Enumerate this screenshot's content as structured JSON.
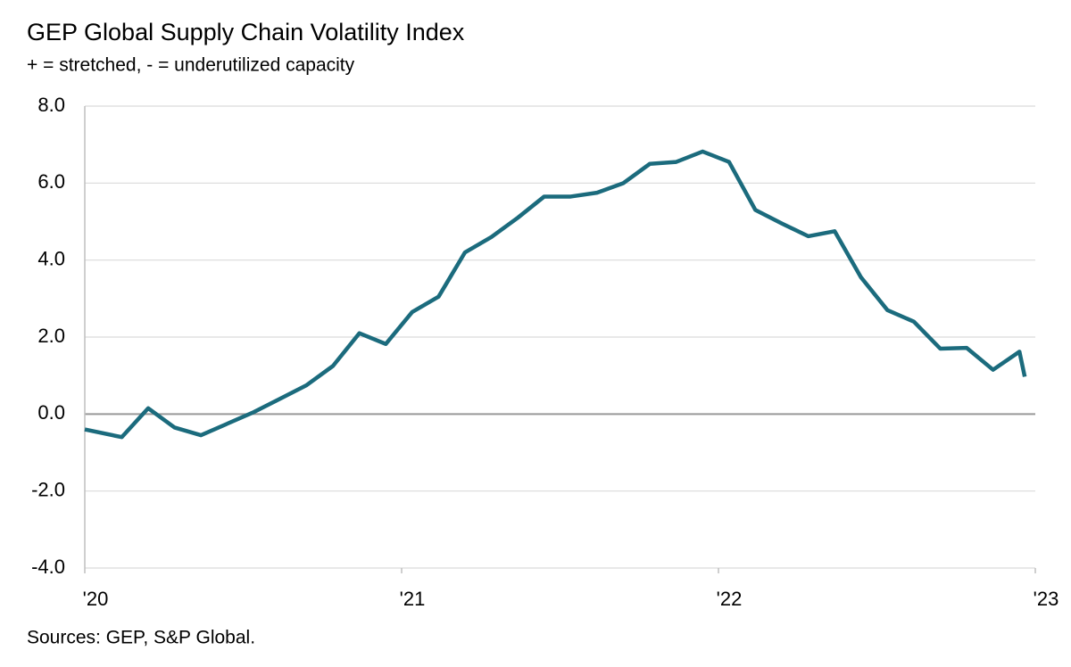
{
  "chart_data": {
    "type": "line",
    "title": "GEP Global Supply Chain Volatility Index",
    "subtitle": "+ = stretched, - = underutilized capacity",
    "source": "Sources: GEP, S&P Global.",
    "x": [
      0,
      1.4,
      2.4,
      3.4,
      4.4,
      5.4,
      6.4,
      7.4,
      8.4,
      9.4,
      10.4,
      11.4,
      12.4,
      13.4,
      14.4,
      15.4,
      16.4,
      17.4,
      18.4,
      19.4,
      20.4,
      21.4,
      22.4,
      23.4,
      24.4,
      25.4,
      26.4,
      27.4,
      28.4,
      29.4,
      30.4,
      31.4,
      32.4,
      33.4,
      34.4,
      35.4,
      35.6
    ],
    "series": [
      {
        "name": "GEP Global Supply Chain Volatility Index",
        "color": "#1b6b7d",
        "values": [
          -0.4,
          -0.6,
          0.15,
          -0.35,
          -0.55,
          -0.25,
          0.05,
          0.4,
          0.75,
          1.25,
          2.1,
          1.82,
          2.65,
          3.05,
          4.2,
          4.6,
          5.1,
          5.65,
          5.65,
          5.75,
          6.0,
          6.5,
          6.55,
          6.82,
          6.55,
          5.3,
          4.95,
          4.62,
          4.75,
          3.55,
          2.7,
          2.4,
          1.7,
          1.72,
          1.15,
          1.62,
          0.97
        ]
      }
    ],
    "xlim": [
      0,
      36
    ],
    "xticks": [
      {
        "value": 0,
        "label": "'20"
      },
      {
        "value": 12,
        "label": "'21"
      },
      {
        "value": 24,
        "label": "'22"
      },
      {
        "value": 36,
        "label": "'23"
      }
    ],
    "ylim": [
      -4,
      8
    ],
    "yticks": [
      {
        "value": -4,
        "label": "-4.0"
      },
      {
        "value": -2,
        "label": "-2.0"
      },
      {
        "value": 0,
        "label": "0.0"
      },
      {
        "value": 2,
        "label": "2.0"
      },
      {
        "value": 4,
        "label": "4.0"
      },
      {
        "value": 6,
        "label": "6.0"
      },
      {
        "value": 8,
        "label": "8.0"
      }
    ],
    "grid": true
  }
}
